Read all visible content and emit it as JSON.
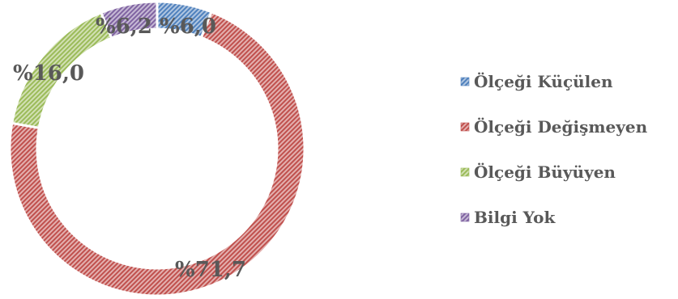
{
  "chart_data": {
    "type": "pie",
    "variant": "doughnut",
    "categories": [
      "Ölçeği Küçülen",
      "Ölçeği Değişmeyen",
      "Ölçeği Büyüyen",
      "Bilgi Yok"
    ],
    "values": [
      6.0,
      71.7,
      16.0,
      6.2
    ],
    "data_labels": [
      "%6,0",
      "%71,7",
      "%16,0",
      "%6,2"
    ],
    "colors": [
      "#4F81BD",
      "#C0504D",
      "#9BBB59",
      "#8064A2"
    ],
    "fill_pattern": "diagonal-hatch",
    "legend_position": "right"
  }
}
